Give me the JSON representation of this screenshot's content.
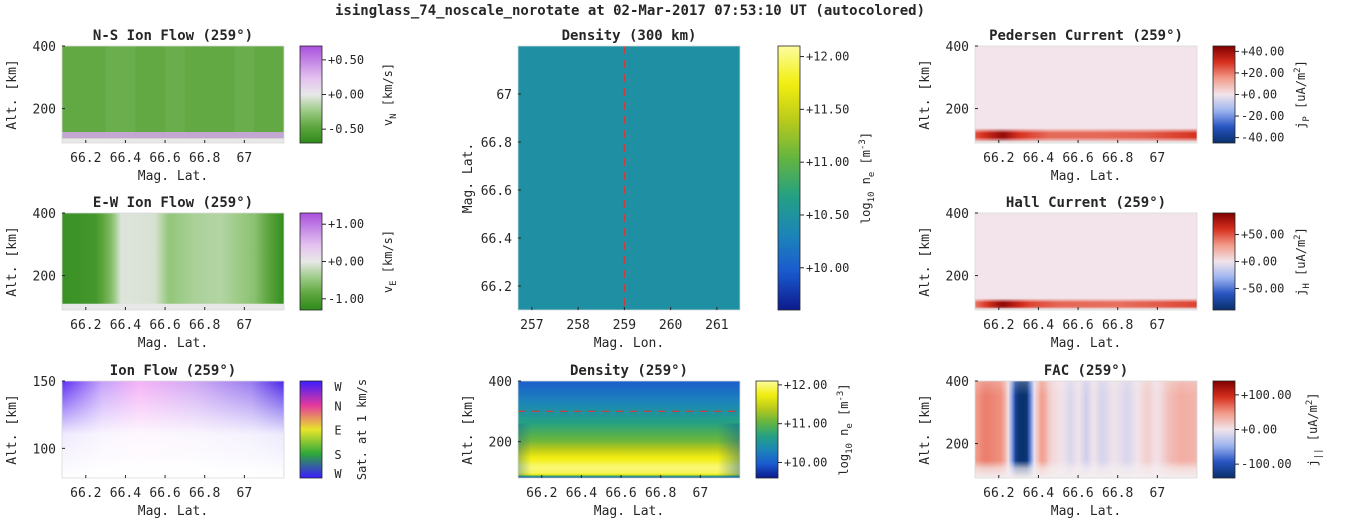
{
  "figure_title": "isinglass_74_noscale_norotate at 02-Mar-2017 07:53:10 UT (autocolored)",
  "colors": {
    "pink_green": [
      "#2d8a1c",
      "#5ea63e",
      "#9ccb86",
      "#e8e8e8",
      "#e4c2f0",
      "#c58ae6",
      "#a94fdd"
    ],
    "blue_white_red": [
      "#08306b",
      "#2754c2",
      "#9db4f0",
      "#f2e4ea",
      "#f29b8a",
      "#d7301f",
      "#7f0000"
    ],
    "parula": [
      "#0d1a8c",
      "#1a59cf",
      "#1c85b8",
      "#23a084",
      "#62b441",
      "#b8c91c",
      "#f2ee0f",
      "#fdfca0"
    ],
    "hue_wheel": [
      "#3b1cff",
      "#2da83a",
      "#e8e52a",
      "#e4399c",
      "#3b1cff"
    ],
    "dashed_line": "#cc3b3b",
    "background_fill": "#e8e8e8"
  },
  "chart_data": [
    {
      "id": "ns_flow",
      "type": "heatmap",
      "title": "N-S Ion Flow (259°)",
      "xlabel": "Mag. Lat.",
      "ylabel": "Alt. [km]",
      "xlim": [
        66.08,
        67.2
      ],
      "ylim": [
        90,
        400
      ],
      "x_ticks": [
        66.2,
        66.4,
        66.6,
        66.8,
        67.0
      ],
      "x_tick_labels": [
        "66.2",
        "66.4",
        "66.6",
        "66.8",
        "67"
      ],
      "y_ticks": [
        200,
        400
      ],
      "y_tick_labels": [
        "200",
        "400"
      ],
      "colormap": "pink_green",
      "clim": [
        -0.7,
        0.7
      ],
      "colorbar_ticks": [
        0.5,
        0.0,
        -0.5
      ],
      "colorbar_labels": [
        "+0.50",
        "+0.00",
        "-0.50"
      ],
      "colorbar_label": "v",
      "colorbar_label_sub": "N",
      "colorbar_label_tail": " [km/s]",
      "description_values": {
        "bulk_value": -0.45,
        "bottom_layer_value": 0.35
      }
    },
    {
      "id": "ew_flow",
      "type": "heatmap",
      "title": "E-W Ion Flow (259°)",
      "xlabel": "Mag. Lat.",
      "ylabel": "Alt. [km]",
      "xlim": [
        66.08,
        67.2
      ],
      "ylim": [
        90,
        400
      ],
      "x_ticks": [
        66.2,
        66.4,
        66.6,
        66.8,
        67.0
      ],
      "x_tick_labels": [
        "66.2",
        "66.4",
        "66.6",
        "66.8",
        "67"
      ],
      "y_ticks": [
        200,
        400
      ],
      "y_tick_labels": [
        "200",
        "400"
      ],
      "colormap": "pink_green",
      "clim": [
        -1.3,
        1.3
      ],
      "colorbar_ticks": [
        1.0,
        0.0,
        -1.0
      ],
      "colorbar_labels": [
        "+1.00",
        "+0.00",
        "-1.00"
      ],
      "colorbar_label": "v",
      "colorbar_label_sub": "E",
      "colorbar_label_tail": " [km/s]",
      "lat_profile": [
        [
          66.08,
          -1.2
        ],
        [
          66.25,
          -1.1
        ],
        [
          66.33,
          -0.6
        ],
        [
          66.38,
          -0.05
        ],
        [
          66.55,
          -0.1
        ],
        [
          66.62,
          -0.5
        ],
        [
          66.75,
          -0.35
        ],
        [
          66.88,
          -0.3
        ],
        [
          67.05,
          -0.55
        ],
        [
          67.2,
          -1.25
        ]
      ]
    },
    {
      "id": "ion_flow",
      "type": "heatmap",
      "title": "Ion Flow (259°)",
      "xlabel": "Mag. Lat.",
      "ylabel": "Alt. [km]",
      "xlim": [
        66.08,
        67.2
      ],
      "ylim": [
        78,
        150
      ],
      "x_ticks": [
        66.2,
        66.4,
        66.6,
        66.8,
        67.0
      ],
      "x_tick_labels": [
        "66.2",
        "66.4",
        "66.6",
        "66.8",
        "67"
      ],
      "y_ticks": [
        100,
        150
      ],
      "y_tick_labels": [
        "100",
        "150"
      ],
      "colormap": "hue_wheel",
      "colorbar_ticks": [
        "W",
        "N",
        "E",
        "S",
        "W"
      ],
      "colorbar_label": "Sat. at 1 km/s"
    },
    {
      "id": "density_300",
      "type": "heatmap",
      "title": "Density (300 km)",
      "xlabel": "Mag. Lon.",
      "ylabel": "Mag. Lat.",
      "xlim": [
        256.7,
        261.5
      ],
      "ylim": [
        66.1,
        67.2
      ],
      "x_ticks": [
        257,
        258,
        259,
        260,
        261
      ],
      "x_tick_labels": [
        "257",
        "258",
        "259",
        "260",
        "261"
      ],
      "y_ticks": [
        66.2,
        66.4,
        66.6,
        66.8,
        67.0
      ],
      "y_tick_labels": [
        "66.2",
        "66.4",
        "66.6",
        "66.8",
        "67"
      ],
      "colormap": "parula",
      "clim": [
        9.6,
        12.1
      ],
      "colorbar_ticks": [
        12.0,
        11.5,
        11.0,
        10.5,
        10.0
      ],
      "colorbar_labels": [
        "+12.00",
        "+11.50",
        "+11.00",
        "+10.50",
        "+10.00"
      ],
      "colorbar_label": "log",
      "colorbar_label_sub": "10",
      "colorbar_label_tail": " n",
      "colorbar_label_sub2": "e",
      "colorbar_label_unit": " [m",
      "colorbar_label_sup": "-3",
      "colorbar_label_end": "]",
      "field_value": 10.45,
      "cut_line": {
        "axis": "x",
        "value": 259
      }
    },
    {
      "id": "density_259",
      "type": "heatmap",
      "title": "Density (259°)",
      "xlabel": "Mag. Lat.",
      "ylabel": "Alt. [km]",
      "xlim": [
        66.08,
        67.2
      ],
      "ylim": [
        80,
        400
      ],
      "x_ticks": [
        66.2,
        66.4,
        66.6,
        66.8,
        67.0
      ],
      "x_tick_labels": [
        "66.2",
        "66.4",
        "66.6",
        "66.8",
        "67"
      ],
      "y_ticks": [
        200,
        400
      ],
      "y_tick_labels": [
        "200",
        "400"
      ],
      "colormap": "parula",
      "clim": [
        9.6,
        12.1
      ],
      "colorbar_ticks": [
        12.0,
        11.0,
        10.0
      ],
      "colorbar_labels": [
        "+12.00",
        "+11.00",
        "+10.00"
      ],
      "colorbar_label": "log",
      "colorbar_label_sub": "10",
      "colorbar_label_tail": " n",
      "colorbar_label_sub2": "e",
      "colorbar_label_unit": " [m",
      "colorbar_label_sup": "-3",
      "colorbar_label_end": "]",
      "alt_profile": [
        [
          80,
          9.7
        ],
        [
          92,
          11.9
        ],
        [
          115,
          12.0
        ],
        [
          150,
          11.7
        ],
        [
          200,
          11.1
        ],
        [
          260,
          10.7
        ],
        [
          320,
          10.35
        ],
        [
          400,
          10.0
        ]
      ],
      "cut_line": {
        "axis": "y",
        "value": 300
      }
    },
    {
      "id": "pedersen",
      "type": "heatmap",
      "title": "Pedersen Current (259°)",
      "xlabel": "Mag. Lat.",
      "ylabel": "Alt. [km]",
      "xlim": [
        66.08,
        67.2
      ],
      "ylim": [
        90,
        400
      ],
      "x_ticks": [
        66.2,
        66.4,
        66.6,
        66.8,
        67.0
      ],
      "x_tick_labels": [
        "66.2",
        "66.4",
        "66.6",
        "66.8",
        "67"
      ],
      "y_ticks": [
        200,
        400
      ],
      "y_tick_labels": [
        "200",
        "400"
      ],
      "colormap": "blue_white_red",
      "clim": [
        -45,
        45
      ],
      "colorbar_ticks": [
        40,
        20,
        0,
        -20,
        -40
      ],
      "colorbar_labels": [
        "+40.00",
        "+20.00",
        "+0.00",
        "-20.00",
        "-40.00"
      ],
      "colorbar_label": "j",
      "colorbar_label_sub": "P",
      "colorbar_label_unit": " [uA/m",
      "colorbar_label_sup": "2",
      "colorbar_label_end": "]",
      "layer_altitude": 115,
      "lat_profile": [
        [
          66.08,
          25
        ],
        [
          66.22,
          42
        ],
        [
          66.3,
          30
        ],
        [
          66.45,
          22
        ],
        [
          66.7,
          22
        ],
        [
          66.95,
          24
        ],
        [
          67.2,
          30
        ]
      ]
    },
    {
      "id": "hall",
      "type": "heatmap",
      "title": "Hall Current (259°)",
      "xlabel": "Mag. Lat.",
      "ylabel": "Alt. [km]",
      "xlim": [
        66.08,
        67.2
      ],
      "ylim": [
        90,
        400
      ],
      "x_ticks": [
        66.2,
        66.4,
        66.6,
        66.8,
        67.0
      ],
      "x_tick_labels": [
        "66.2",
        "66.4",
        "66.6",
        "66.8",
        "67"
      ],
      "y_ticks": [
        200,
        400
      ],
      "y_tick_labels": [
        "200",
        "400"
      ],
      "colormap": "blue_white_red",
      "clim": [
        -90,
        90
      ],
      "colorbar_ticks": [
        50,
        0,
        -50
      ],
      "colorbar_labels": [
        "+50.00",
        "+0.00",
        "-50.00"
      ],
      "colorbar_label": "j",
      "colorbar_label_sub": "H",
      "colorbar_label_unit": " [uA/m",
      "colorbar_label_sup": "2",
      "colorbar_label_end": "]",
      "layer_altitude": 108,
      "lat_profile": [
        [
          66.08,
          40
        ],
        [
          66.22,
          85
        ],
        [
          66.35,
          55
        ],
        [
          66.5,
          45
        ],
        [
          66.8,
          42
        ],
        [
          67.0,
          48
        ],
        [
          67.2,
          55
        ]
      ]
    },
    {
      "id": "fac",
      "type": "heatmap",
      "title": "FAC (259°)",
      "xlabel": "Mag. Lat.",
      "ylabel": "Alt. [km]",
      "xlim": [
        66.08,
        67.2
      ],
      "ylim": [
        90,
        400
      ],
      "x_ticks": [
        66.2,
        66.4,
        66.6,
        66.8,
        67.0
      ],
      "x_tick_labels": [
        "66.2",
        "66.4",
        "66.6",
        "66.8",
        "67"
      ],
      "y_ticks": [
        200,
        400
      ],
      "y_tick_labels": [
        "200",
        "400"
      ],
      "colormap": "blue_white_red",
      "clim": [
        -140,
        140
      ],
      "colorbar_ticks": [
        100,
        0,
        -100
      ],
      "colorbar_labels": [
        "+100.00",
        "+0.00",
        "-100.00"
      ],
      "colorbar_label": "j",
      "colorbar_label_sub": "||",
      "colorbar_label_unit": " [uA/m",
      "colorbar_label_sup": "2",
      "colorbar_label_end": "]",
      "lat_profile": [
        [
          66.08,
          45
        ],
        [
          66.13,
          60
        ],
        [
          66.18,
          55
        ],
        [
          66.22,
          50
        ],
        [
          66.25,
          0
        ],
        [
          66.29,
          -135
        ],
        [
          66.34,
          -140
        ],
        [
          66.38,
          0
        ],
        [
          66.42,
          50
        ],
        [
          66.46,
          10
        ],
        [
          66.52,
          0
        ],
        [
          66.56,
          -15
        ],
        [
          66.6,
          0
        ],
        [
          66.64,
          -20
        ],
        [
          66.68,
          0
        ],
        [
          66.72,
          -18
        ],
        [
          66.78,
          0
        ],
        [
          66.85,
          -15
        ],
        [
          66.9,
          0
        ],
        [
          66.95,
          15
        ],
        [
          67.0,
          0
        ],
        [
          67.06,
          25
        ],
        [
          67.12,
          35
        ],
        [
          67.2,
          30
        ]
      ]
    }
  ]
}
